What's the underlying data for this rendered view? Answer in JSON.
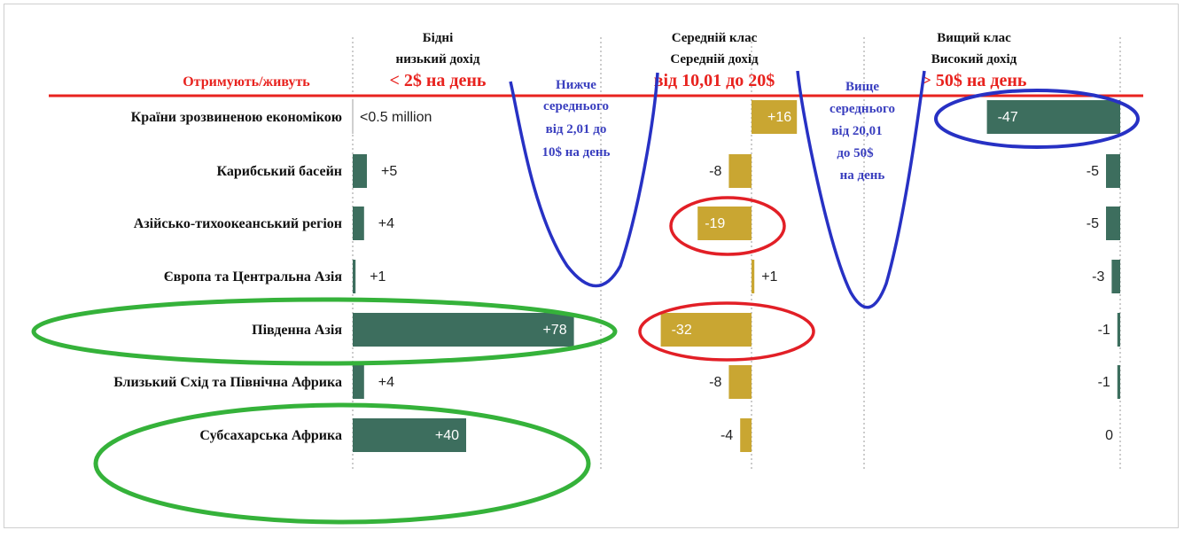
{
  "chart_data": {
    "type": "bar",
    "columns": [
      {
        "key": "poor",
        "header": [
          "Бідні",
          "низький дохід"
        ],
        "range": "< 2$ на день"
      },
      {
        "key": "middle",
        "header": [
          "Середній клас",
          "Середній дохід"
        ],
        "range": "від 10,01 до 20$"
      },
      {
        "key": "upper",
        "header": [
          "Вищий клас",
          "Високий дохід"
        ],
        "range": "> 50$ на день"
      }
    ],
    "row_header": "Отримують/живуть",
    "bands": [
      {
        "key": "lower_middle",
        "lines": [
          "Нижче",
          "середнього",
          "від 2,01 до",
          "10$ на день"
        ]
      },
      {
        "key": "upper_middle",
        "lines": [
          "Вище",
          "середнього",
          "від 20,01",
          "до 50$",
          "на день"
        ]
      }
    ],
    "categories": [
      "Країни зрозвиненою економікою",
      "Карибський басейн",
      "Азійсько-тихоокеанський регіон",
      "Європа та Центральна Азія",
      "Південна Азія",
      "Близький Схід та Північна Африка",
      "Субсахарська Африка"
    ],
    "series": [
      {
        "values": [
          0,
          5,
          4,
          1,
          78,
          4,
          40
        ],
        "labels": [
          "<0.5 million",
          "+5",
          "+4",
          "+1",
          "+78",
          "+4",
          "+40"
        ]
      },
      {
        "values": [
          16,
          -8,
          -19,
          1,
          -32,
          -8,
          -4
        ],
        "labels": [
          "+16",
          "-8",
          "-19",
          "+1",
          "-32",
          "-8",
          "-4"
        ]
      },
      {
        "values": [
          -47,
          -5,
          -5,
          -3,
          -1,
          -1,
          0
        ],
        "labels": [
          "-47",
          "-5",
          "-5",
          "-3",
          "-1",
          "-1",
          "0"
        ]
      }
    ],
    "colors": {
      "poor": "#3d6e5e",
      "middle": "#c9a632",
      "upper": "#3d6e5e",
      "red_text": "#e8231f",
      "band_text": "#3a3fbf",
      "blue_mark": "#2731c4",
      "red_mark": "#e21f26",
      "green_mark": "#35b23a",
      "header_line": "#e8231f",
      "grid": "#9a9a9a"
    }
  }
}
